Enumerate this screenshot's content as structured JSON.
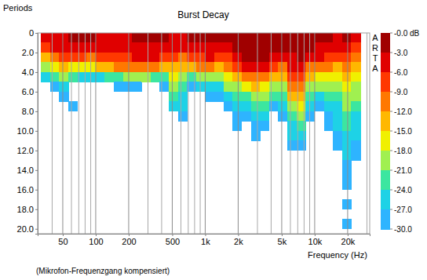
{
  "chart_data": {
    "type": "heatmap",
    "title": "Burst Decay",
    "xlabel": "Frequency (Hz)",
    "ylabel": "Periods",
    "annotations": [
      "ARTA",
      "(Mikrofon-Frequenzgang kompensiert)"
    ],
    "log": "x",
    "grid": true,
    "xlim": [
      29.5,
      31800
    ],
    "ylim": [
      0,
      20.5
    ],
    "xticks": [
      50,
      100,
      200,
      500,
      {
        "value": 1000,
        "label": "1k"
      },
      {
        "value": 2000,
        "label": "2k"
      },
      {
        "value": 5000,
        "label": "5k"
      },
      {
        "value": 10000,
        "label": "10k"
      },
      {
        "value": 20000,
        "label": "20k"
      }
    ],
    "minor_xticks": [
      40,
      60,
      70,
      80,
      90,
      300,
      400,
      600,
      700,
      800,
      900,
      3000,
      4000,
      6000,
      7000,
      8000,
      9000,
      30000
    ],
    "yticks": [
      0,
      {
        "value": 2,
        "label": "2.0"
      },
      {
        "value": 4,
        "label": "4.0"
      },
      {
        "value": 6,
        "label": "6.0"
      },
      {
        "value": 8,
        "label": "8.0"
      },
      {
        "value": 10,
        "label": "10.0"
      },
      {
        "value": 12,
        "label": "12.0"
      },
      {
        "value": 14,
        "label": "14.0"
      },
      {
        "value": 16,
        "label": "16.0"
      },
      {
        "value": 18,
        "label": "18.0"
      },
      {
        "value": 20,
        "label": "20.0"
      }
    ],
    "colorbar": {
      "range": [
        -30,
        0
      ],
      "ticks": [
        {
          "value": 0,
          "label": "-0.0 dB"
        },
        {
          "value": -3,
          "label": "-3.0"
        },
        {
          "value": -6,
          "label": "-6.0"
        },
        {
          "value": -9,
          "label": "-9.0"
        },
        {
          "value": -12,
          "label": "-12.0"
        },
        {
          "value": -15,
          "label": "-15.0"
        },
        {
          "value": -18,
          "label": "-18.0"
        },
        {
          "value": -21,
          "label": "-21.0"
        },
        {
          "value": -24,
          "label": "-24.0"
        },
        {
          "value": -27,
          "label": "-27.0"
        },
        {
          "value": -30,
          "label": "-30.0"
        }
      ]
    },
    "freq_edges": [
      31.6,
      38.3,
      46.4,
      56.2,
      68.1,
      82.5,
      100,
      121,
      147,
      178,
      215,
      261,
      316,
      383,
      464,
      562,
      681,
      825,
      1000,
      1211,
      1468,
      1778,
      2154,
      2610,
      3162,
      3831,
      4642,
      5623,
      6813,
      8254,
      10000,
      12115,
      14678,
      17783,
      21544,
      26102
    ],
    "period_edges": [
      0,
      1,
      2,
      3,
      4,
      5,
      6,
      7,
      8,
      9,
      10,
      11,
      12,
      13,
      14,
      15,
      16,
      17,
      18,
      19,
      20,
      21
    ],
    "values": [
      [
        -5,
        -8,
        -13,
        -20,
        -26,
        null,
        null,
        null,
        null,
        null,
        null,
        null,
        null,
        null,
        null,
        null,
        null,
        null,
        null,
        null,
        null
      ],
      [
        -4,
        -6,
        -10,
        -17,
        -24,
        -28,
        null,
        null,
        null,
        null,
        null,
        null,
        null,
        null,
        null,
        null,
        null,
        null,
        null,
        null,
        null
      ],
      [
        -4,
        -6,
        -9,
        -15,
        -21,
        -27,
        -29,
        null,
        null,
        null,
        null,
        null,
        null,
        null,
        null,
        null,
        null,
        null,
        null,
        null,
        null
      ],
      [
        -3,
        -5,
        -9,
        -16,
        -24,
        null,
        null,
        -29,
        null,
        null,
        null,
        null,
        null,
        null,
        null,
        null,
        null,
        null,
        null,
        null,
        null
      ],
      [
        -3,
        -5,
        -9,
        -17,
        -25,
        null,
        null,
        null,
        null,
        null,
        null,
        null,
        null,
        null,
        null,
        null,
        null,
        null,
        null,
        null,
        null
      ],
      [
        -3,
        -5,
        -10,
        -18,
        -26,
        null,
        null,
        null,
        null,
        null,
        null,
        null,
        null,
        null,
        null,
        null,
        null,
        null,
        null,
        null,
        null
      ],
      [
        -4,
        -5,
        -8,
        -15,
        -25,
        null,
        null,
        null,
        null,
        null,
        null,
        null,
        null,
        null,
        null,
        null,
        null,
        null,
        null,
        null,
        null
      ],
      [
        -4,
        -6,
        -8,
        -13,
        -24,
        null,
        null,
        null,
        null,
        null,
        null,
        null,
        null,
        null,
        null,
        null,
        null,
        null,
        null,
        null,
        null
      ],
      [
        -5,
        -6,
        -8,
        -12,
        -22,
        -29,
        null,
        null,
        null,
        null,
        null,
        null,
        null,
        null,
        null,
        null,
        null,
        null,
        null,
        null,
        null
      ],
      [
        -4,
        -5,
        -7,
        -11,
        -20,
        -28,
        null,
        null,
        null,
        null,
        null,
        null,
        null,
        null,
        null,
        null,
        null,
        null,
        null,
        null,
        null
      ],
      [
        -3,
        -4,
        -6,
        -10,
        -19,
        -28,
        null,
        null,
        null,
        null,
        null,
        null,
        null,
        null,
        null,
        null,
        null,
        null,
        null,
        null,
        null
      ],
      [
        -3,
        -4,
        -6,
        -11,
        -21,
        null,
        null,
        null,
        null,
        null,
        null,
        null,
        null,
        null,
        null,
        null,
        null,
        null,
        null,
        null,
        null
      ],
      [
        -3,
        -4,
        -5,
        -10,
        -22,
        null,
        null,
        null,
        null,
        null,
        null,
        null,
        null,
        null,
        null,
        null,
        null,
        null,
        null,
        null,
        null
      ],
      [
        -3,
        -5,
        -8,
        -14,
        -22,
        -28,
        null,
        null,
        null,
        null,
        null,
        null,
        null,
        null,
        null,
        null,
        null,
        null,
        null,
        null,
        null
      ],
      [
        -4,
        -6,
        -9,
        -13,
        -16,
        -19,
        -23,
        -27,
        null,
        null,
        null,
        null,
        null,
        null,
        null,
        null,
        null,
        null,
        null,
        null,
        null
      ],
      [
        -4,
        -6,
        -10,
        -15,
        -19,
        -22,
        -25,
        -27,
        -29,
        null,
        null,
        null,
        null,
        null,
        null,
        null,
        null,
        null,
        null,
        null,
        null
      ],
      [
        -3,
        -5,
        -9,
        -15,
        -24,
        -28,
        null,
        null,
        null,
        null,
        null,
        null,
        null,
        null,
        null,
        null,
        null,
        null,
        null,
        null,
        null
      ],
      [
        -2,
        -4,
        -7,
        -12,
        -19,
        -27,
        null,
        null,
        null,
        null,
        null,
        null,
        null,
        null,
        null,
        null,
        null,
        null,
        null,
        null,
        null
      ],
      [
        -3,
        -4,
        -6,
        -12,
        -20,
        -26,
        -29,
        null,
        null,
        null,
        null,
        null,
        null,
        null,
        null,
        null,
        null,
        null,
        null,
        null,
        null
      ],
      [
        -3,
        -5,
        -9,
        -15,
        -21,
        -26,
        -29,
        null,
        null,
        null,
        null,
        null,
        null,
        null,
        null,
        null,
        null,
        null,
        null,
        null,
        null
      ],
      [
        -2,
        -4,
        -7,
        -11,
        -16,
        -21,
        -25,
        -28,
        null,
        null,
        null,
        null,
        null,
        null,
        null,
        null,
        null,
        null,
        null,
        null,
        null
      ],
      [
        -1,
        -2,
        -5,
        -9,
        -14,
        -19,
        -23,
        -26,
        -29,
        -29,
        null,
        null,
        null,
        null,
        null,
        null,
        null,
        null,
        null,
        null,
        null
      ],
      [
        -1,
        -1,
        -3,
        -6,
        -11,
        -17,
        -22,
        -26,
        -28,
        null,
        null,
        null,
        null,
        null,
        null,
        null,
        null,
        null,
        null,
        null,
        null
      ],
      [
        0,
        -1,
        -2,
        -5,
        -10,
        -15,
        -20,
        -24,
        -27,
        -29,
        -29,
        null,
        null,
        null,
        null,
        null,
        null,
        null,
        null,
        null,
        null
      ],
      [
        -1,
        -1,
        -3,
        -6,
        -11,
        -16,
        -21,
        -24,
        -27,
        -29,
        null,
        null,
        null,
        null,
        null,
        null,
        null,
        null,
        null,
        null,
        null
      ],
      [
        -1,
        -2,
        -4,
        -8,
        -14,
        -20,
        -24,
        -28,
        null,
        null,
        null,
        null,
        null,
        null,
        null,
        null,
        null,
        null,
        null,
        null,
        null
      ],
      [
        -2,
        -3,
        -6,
        -10,
        -15,
        -19,
        -23,
        -26,
        -29,
        null,
        null,
        null,
        null,
        null,
        null,
        null,
        null,
        null,
        null,
        null,
        null
      ],
      [
        -2,
        -3,
        -4,
        -6,
        -8,
        -11,
        -15,
        -19,
        -22,
        -25,
        -27,
        -29,
        null,
        null,
        null,
        null,
        null,
        null,
        null,
        null,
        null
      ],
      [
        -1,
        -2,
        -3,
        -5,
        -7,
        -10,
        -13,
        -17,
        -21,
        -24,
        -26,
        -28,
        null,
        null,
        null,
        null,
        null,
        null,
        null,
        null,
        null
      ],
      [
        -2,
        -3,
        -6,
        -10,
        -15,
        -20,
        -24,
        -27,
        -29,
        null,
        null,
        null,
        null,
        null,
        null,
        null,
        null,
        null,
        null,
        null,
        null
      ],
      [
        -3,
        -4,
        -6,
        -10,
        -16,
        -21,
        -25,
        -28,
        null,
        null,
        null,
        null,
        null,
        null,
        null,
        null,
        null,
        null,
        null,
        null,
        null
      ],
      [
        -3,
        -5,
        -8,
        -12,
        -17,
        -21,
        -24,
        -27,
        -29,
        -29,
        null,
        null,
        null,
        null,
        null,
        null,
        null,
        null,
        null,
        null,
        null
      ],
      [
        -4,
        -6,
        -9,
        -13,
        -17,
        -20,
        -23,
        -25,
        -26,
        -27,
        -28,
        -29,
        null,
        null,
        null,
        null,
        null,
        null,
        null,
        null,
        null
      ],
      [
        -3,
        -5,
        -8,
        -11,
        -14,
        -17,
        -19,
        -21,
        -23,
        -24,
        -25,
        -26,
        -27,
        -28,
        -29,
        -29,
        null,
        -29,
        null,
        -29,
        null
      ],
      [
        -5,
        -7,
        -10,
        -13,
        -16,
        -19,
        -21,
        -23,
        -25,
        -26,
        -27,
        -28,
        -29,
        null,
        null,
        null,
        null,
        null,
        null,
        null,
        null
      ]
    ]
  }
}
